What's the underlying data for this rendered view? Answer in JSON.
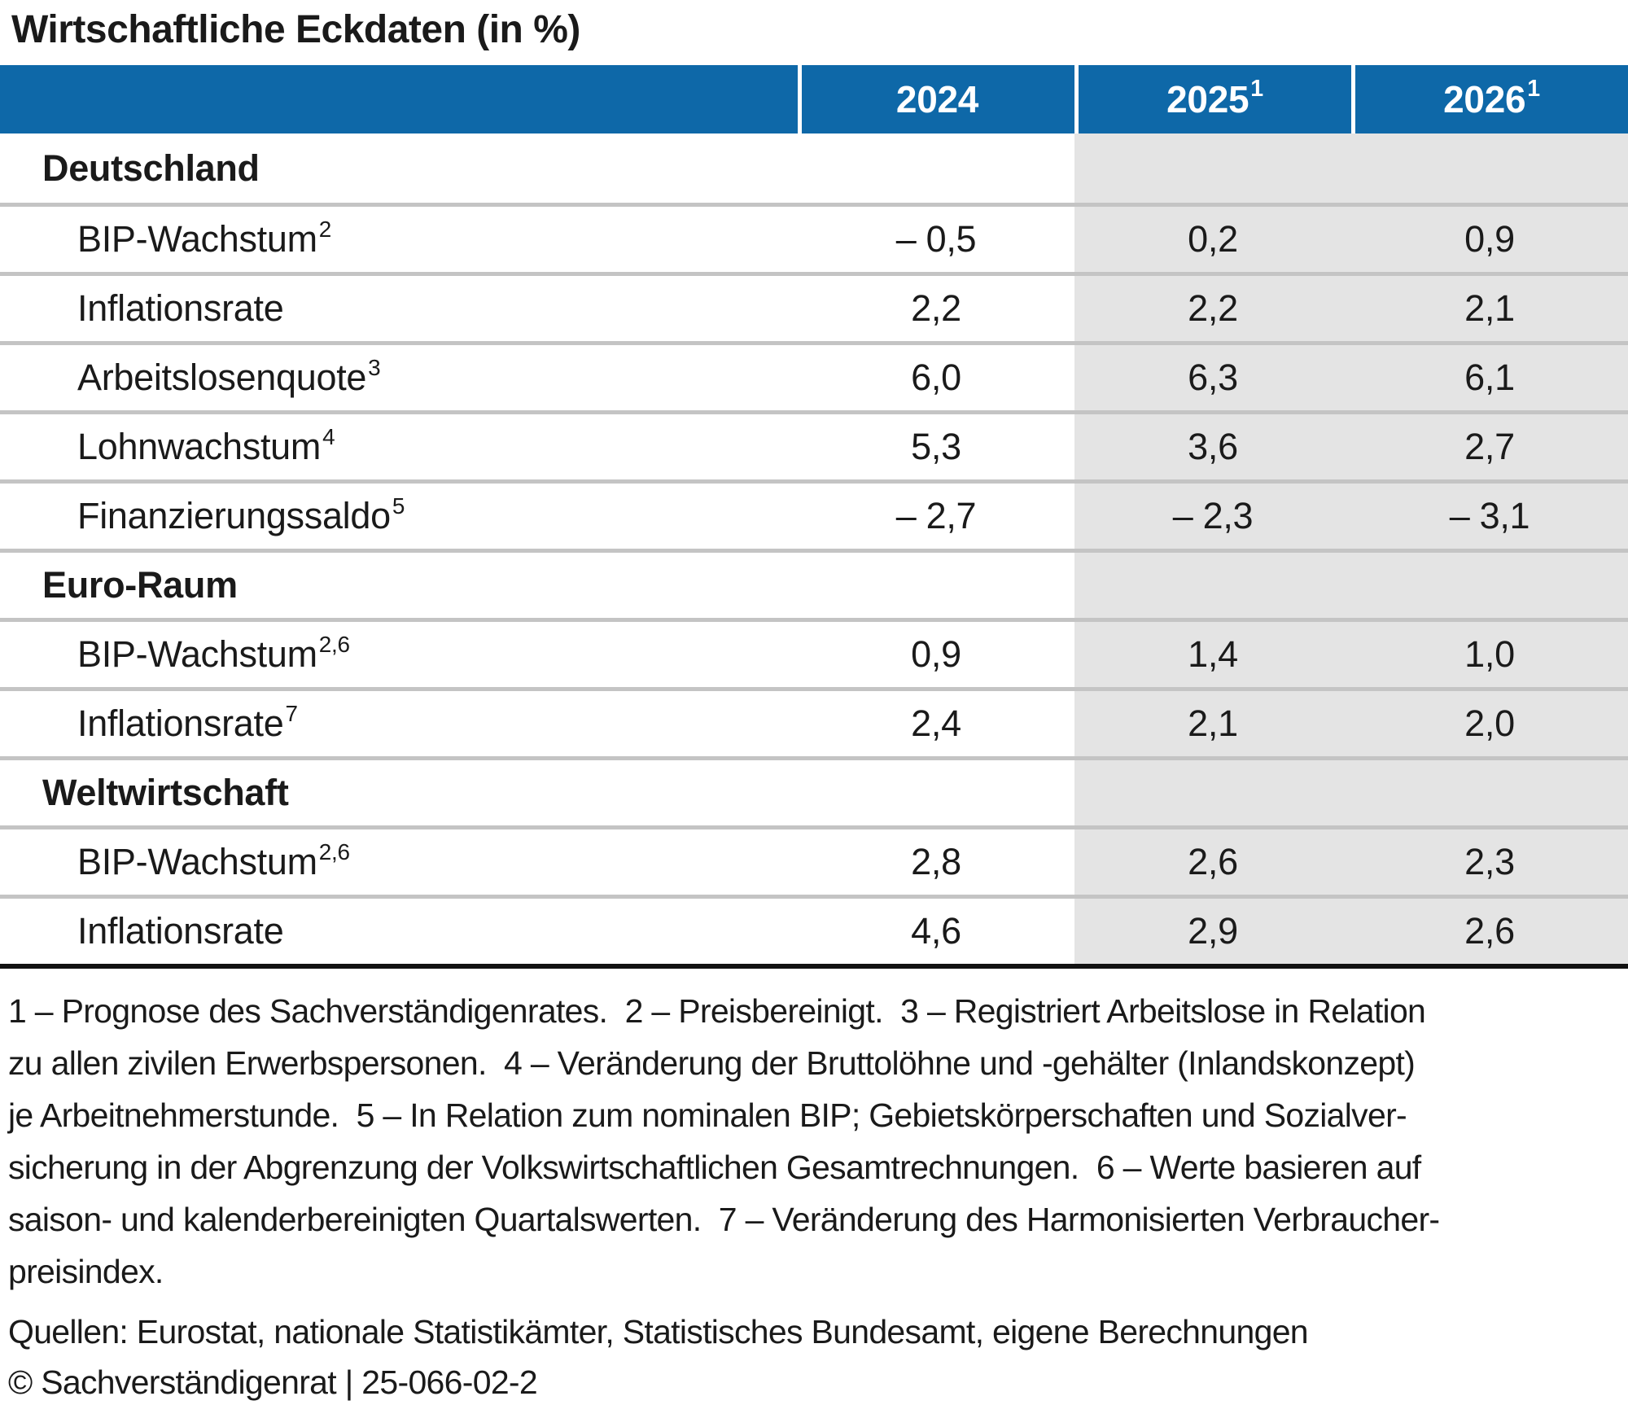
{
  "title": "Wirtschaftliche Eckdaten (in %)",
  "colors": {
    "header_blue": "#0E68A8",
    "forecast_shade_gray": "#E4E4E4",
    "row_separator_gray": "#C4C4C4",
    "table_bottom_line": "#121212",
    "header_text": "#ffffff",
    "body_text": "#1a1a1a"
  },
  "table": {
    "col_headers": [
      {
        "year": "2024",
        "sup": ""
      },
      {
        "year": "2025",
        "sup": "1"
      },
      {
        "year": "2026",
        "sup": "1"
      }
    ],
    "rows": [
      {
        "kind": "section",
        "label": "Deutschland",
        "sup": "",
        "v1": "",
        "v2": "",
        "v3": ""
      },
      {
        "kind": "data",
        "label": "BIP-Wachstum",
        "sup": "2",
        "v1": "– 0,5",
        "v2": "0,2",
        "v3": "0,9"
      },
      {
        "kind": "data",
        "label": "Inflationsrate",
        "sup": "",
        "v1": "2,2",
        "v2": "2,2",
        "v3": "2,1"
      },
      {
        "kind": "data",
        "label": "Arbeitslosenquote",
        "sup": "3",
        "v1": "6,0",
        "v2": "6,3",
        "v3": "6,1"
      },
      {
        "kind": "data",
        "label": "Lohnwachstum",
        "sup": "4",
        "v1": "5,3",
        "v2": "3,6",
        "v3": "2,7"
      },
      {
        "kind": "data",
        "label": "Finanzierungssaldo",
        "sup": "5",
        "v1": "– 2,7",
        "v2": "– 2,3",
        "v3": "– 3,1"
      },
      {
        "kind": "section",
        "label": "Euro-Raum",
        "sup": "",
        "v1": "",
        "v2": "",
        "v3": ""
      },
      {
        "kind": "data",
        "label": "BIP-Wachstum",
        "sup": "2,6",
        "v1": "0,9",
        "v2": "1,4",
        "v3": "1,0"
      },
      {
        "kind": "data",
        "label": "Inflationsrate",
        "sup": "7",
        "v1": "2,4",
        "v2": "2,1",
        "v3": "2,0"
      },
      {
        "kind": "section",
        "label": "Weltwirtschaft",
        "sup": "",
        "v1": "",
        "v2": "",
        "v3": ""
      },
      {
        "kind": "data",
        "label": "BIP-Wachstum",
        "sup": "2,6",
        "v1": "2,8",
        "v2": "2,6",
        "v3": "2,3"
      },
      {
        "kind": "data",
        "label": "Inflationsrate",
        "sup": "",
        "v1": "4,6",
        "v2": "2,9",
        "v3": "2,6"
      }
    ]
  },
  "chart_data": {
    "type": "table",
    "title": "Wirtschaftliche Eckdaten (in %)",
    "columns": [
      "2024",
      "2025",
      "2026"
    ],
    "forecast_columns": [
      "2025",
      "2026"
    ],
    "sections": [
      {
        "name": "Deutschland",
        "rows": [
          {
            "indicator": "BIP-Wachstum",
            "footnote": "2",
            "values": [
              -0.5,
              0.2,
              0.9
            ]
          },
          {
            "indicator": "Inflationsrate",
            "footnote": "",
            "values": [
              2.2,
              2.2,
              2.1
            ]
          },
          {
            "indicator": "Arbeitslosenquote",
            "footnote": "3",
            "values": [
              6.0,
              6.3,
              6.1
            ]
          },
          {
            "indicator": "Lohnwachstum",
            "footnote": "4",
            "values": [
              5.3,
              3.6,
              2.7
            ]
          },
          {
            "indicator": "Finanzierungssaldo",
            "footnote": "5",
            "values": [
              -2.7,
              -2.3,
              -3.1
            ]
          }
        ]
      },
      {
        "name": "Euro-Raum",
        "rows": [
          {
            "indicator": "BIP-Wachstum",
            "footnote": "2,6",
            "values": [
              0.9,
              1.4,
              1.0
            ]
          },
          {
            "indicator": "Inflationsrate",
            "footnote": "7",
            "values": [
              2.4,
              2.1,
              2.0
            ]
          }
        ]
      },
      {
        "name": "Weltwirtschaft",
        "rows": [
          {
            "indicator": "BIP-Wachstum",
            "footnote": "2,6",
            "values": [
              2.8,
              2.6,
              2.3
            ]
          },
          {
            "indicator": "Inflationsrate",
            "footnote": "",
            "values": [
              4.6,
              2.9,
              2.6
            ]
          }
        ]
      }
    ]
  },
  "footnotes": {
    "lines": [
      "1 – Prognose des Sachverständigenrates.  2 – Preisbereinigt.  3 – Registriert Arbeitslose in Relation",
      "zu allen zivilen Erwerbspersonen.  4 – Veränderung der Bruttolöhne und -gehälter (Inlandskonzept)",
      "je Arbeitnehmerstunde.  5 – In Relation zum nominalen BIP; Gebietskörperschaften und Sozialver-",
      "sicherung in der Abgrenzung der Volkswirtschaftlichen Gesamtrechnungen.  6 – Werte basieren auf",
      "saison- und kalenderbereinigten Quartalswerten.  7 – Veränderung des Harmonisierten Verbraucher-",
      "preisindex."
    ]
  },
  "sources": "Quellen: Eurostat, nationale Statistikämter, Statistisches Bundesamt, eigene Berechnungen",
  "copyright": "© Sachverständigenrat | 25-066-02-2"
}
